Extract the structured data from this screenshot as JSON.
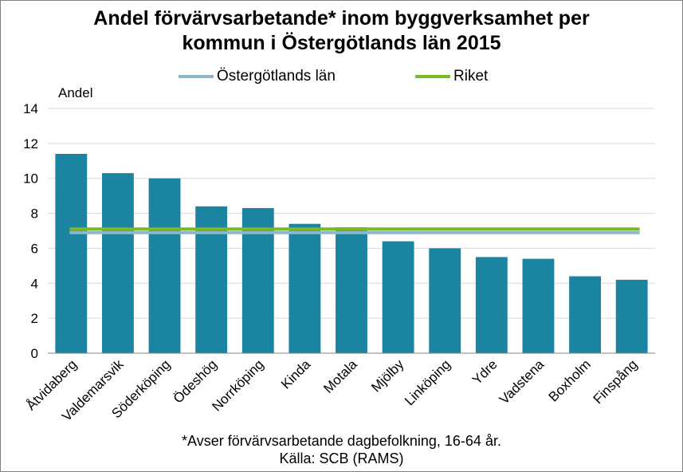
{
  "title_line1": "Andel förvärvsarbetande* inom byggverksamhet per",
  "title_line2": "kommun i Östergötlands län 2015",
  "footnote1": "*Avser förvärvsarbetande dagbefolkning,  16-64 år.",
  "footnote2": "Källa: SCB (RAMS)",
  "colors": {
    "bar": "#1b84a0",
    "ostergotland": "#8cb8cc",
    "riket": "#7ab829",
    "grid": "#d9d9d9"
  },
  "chart_data": {
    "type": "bar",
    "title": "Andel förvärvsarbetande* inom byggverksamhet per kommun i Östergötlands län 2015",
    "ylabel": "Andel",
    "xlabel": "",
    "ylim": [
      0,
      14
    ],
    "yticks": [
      0,
      2,
      4,
      6,
      8,
      10,
      12,
      14
    ],
    "grid": true,
    "legend_position": "top",
    "categories": [
      "Åtvidaberg",
      "Valdemarsvik",
      "Söderköping",
      "Ödeshög",
      "Norrköping",
      "Kinda",
      "Motala",
      "Mjölby",
      "Linköping",
      "Ydre",
      "Vadstena",
      "Boxholm",
      "Finspång"
    ],
    "values": [
      11.4,
      10.3,
      10.0,
      8.4,
      8.3,
      7.4,
      7.2,
      6.4,
      6.0,
      5.5,
      5.4,
      4.4,
      4.2
    ],
    "reference_lines": [
      {
        "name": "Östergötlands län",
        "value": 6.9
      },
      {
        "name": "Riket",
        "value": 7.1
      }
    ]
  }
}
